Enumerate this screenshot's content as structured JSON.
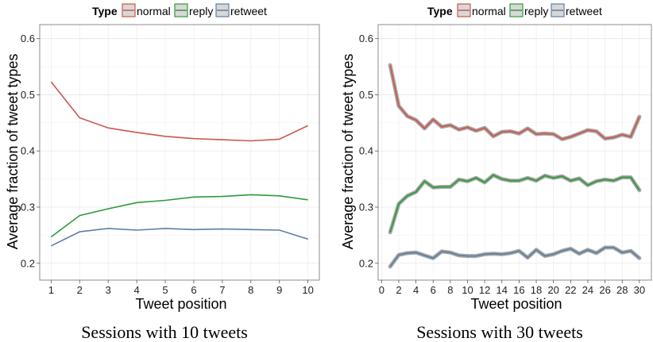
{
  "legend": {
    "title": "Type",
    "entries": [
      {
        "name": "normal",
        "color": "#c9584d"
      },
      {
        "name": "reply",
        "color": "#2e9a3a"
      },
      {
        "name": "retweet",
        "color": "#5f7ea3"
      }
    ]
  },
  "chart_data": [
    {
      "type": "line",
      "title": "",
      "caption": "Sessions with 10 tweets",
      "xlabel": "Tweet position",
      "ylabel": "Average fraction of tweet types",
      "xlim": [
        0.6,
        10.4
      ],
      "ylim": [
        0.17,
        0.625
      ],
      "x_ticks": [
        1,
        2,
        3,
        4,
        5,
        6,
        7,
        8,
        9,
        10
      ],
      "y_ticks": [
        0.2,
        0.3,
        0.4,
        0.5,
        0.6
      ],
      "y_tick_labels": [
        "0.2",
        "0.3",
        "0.4",
        "0.5",
        "0.6"
      ],
      "grid": true,
      "legend_position": "top",
      "x": [
        1,
        2,
        3,
        4,
        5,
        6,
        7,
        8,
        9,
        10
      ],
      "series": [
        {
          "name": "normal",
          "values": [
            0.523,
            0.459,
            0.441,
            0.433,
            0.426,
            0.422,
            0.42,
            0.418,
            0.421,
            0.445
          ]
        },
        {
          "name": "reply",
          "values": [
            0.247,
            0.285,
            0.297,
            0.308,
            0.312,
            0.318,
            0.319,
            0.322,
            0.32,
            0.313
          ]
        },
        {
          "name": "retweet",
          "values": [
            0.231,
            0.256,
            0.262,
            0.259,
            0.262,
            0.26,
            0.261,
            0.26,
            0.259,
            0.243
          ]
        }
      ]
    },
    {
      "type": "line",
      "title": "",
      "caption": "Sessions with 30 tweets",
      "xlabel": "Tweet position",
      "ylabel": "Average fraction of tweet types",
      "xlim": [
        -0.4,
        31.4
      ],
      "ylim": [
        0.17,
        0.625
      ],
      "x_ticks": [
        0,
        2,
        4,
        6,
        8,
        10,
        12,
        14,
        16,
        18,
        20,
        22,
        24,
        26,
        28,
        30
      ],
      "y_ticks": [
        0.2,
        0.3,
        0.4,
        0.5,
        0.6
      ],
      "y_tick_labels": [
        "0.2",
        "0.3",
        "0.4",
        "0.5",
        "0.6"
      ],
      "grid": true,
      "legend_position": "top",
      "x": [
        1,
        2,
        3,
        4,
        5,
        6,
        7,
        8,
        9,
        10,
        11,
        12,
        13,
        14,
        15,
        16,
        17,
        18,
        19,
        20,
        21,
        22,
        23,
        24,
        25,
        26,
        27,
        28,
        29,
        30
      ],
      "series": [
        {
          "name": "normal",
          "values": [
            0.553,
            0.48,
            0.462,
            0.455,
            0.44,
            0.456,
            0.443,
            0.446,
            0.438,
            0.442,
            0.436,
            0.441,
            0.426,
            0.434,
            0.435,
            0.431,
            0.44,
            0.43,
            0.431,
            0.43,
            0.421,
            0.425,
            0.431,
            0.437,
            0.435,
            0.422,
            0.424,
            0.429,
            0.425,
            0.461
          ]
        },
        {
          "name": "reply",
          "values": [
            0.255,
            0.306,
            0.32,
            0.327,
            0.346,
            0.335,
            0.336,
            0.336,
            0.349,
            0.346,
            0.352,
            0.344,
            0.357,
            0.35,
            0.347,
            0.347,
            0.352,
            0.347,
            0.356,
            0.352,
            0.355,
            0.347,
            0.351,
            0.339,
            0.346,
            0.349,
            0.347,
            0.353,
            0.353,
            0.33
          ]
        },
        {
          "name": "retweet",
          "values": [
            0.194,
            0.215,
            0.218,
            0.219,
            0.214,
            0.209,
            0.221,
            0.219,
            0.214,
            0.213,
            0.213,
            0.216,
            0.217,
            0.216,
            0.218,
            0.222,
            0.21,
            0.224,
            0.213,
            0.216,
            0.222,
            0.226,
            0.217,
            0.224,
            0.218,
            0.228,
            0.228,
            0.219,
            0.222,
            0.209
          ]
        }
      ]
    }
  ]
}
